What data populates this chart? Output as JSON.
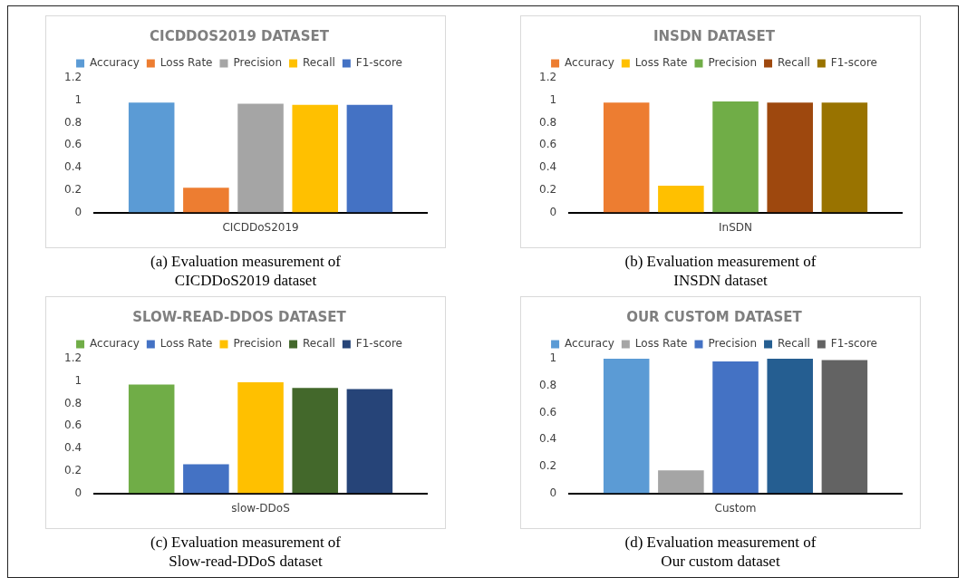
{
  "chart_data": [
    {
      "type": "bar",
      "title": "CICDDOS2019 DATASET",
      "categories": [
        "CICDDoS2019"
      ],
      "legend": "top",
      "grid": false,
      "ylim": [
        0,
        1.2
      ],
      "yticks": [
        0,
        0.2,
        0.4,
        0.6,
        0.8,
        1,
        1.2
      ],
      "annotations": [
        "(a) Evaluation measurement of",
        "CICDDoS2019 dataset"
      ],
      "series": [
        {
          "name": "Accuracy",
          "color": "#5b9bd5",
          "values": [
            0.98
          ]
        },
        {
          "name": "Loss Rate",
          "color": "#ed7d31",
          "values": [
            0.22
          ]
        },
        {
          "name": "Precision",
          "color": "#a5a5a5",
          "values": [
            0.97
          ]
        },
        {
          "name": "Recall",
          "color": "#ffc000",
          "values": [
            0.96
          ]
        },
        {
          "name": "F1-score",
          "color": "#4472c4",
          "values": [
            0.96
          ]
        }
      ]
    },
    {
      "type": "bar",
      "title": "INSDN DATASET",
      "categories": [
        "InSDN"
      ],
      "legend": "top",
      "grid": false,
      "ylim": [
        0,
        1.2
      ],
      "yticks": [
        0,
        0.2,
        0.4,
        0.6,
        0.8,
        1,
        1.2
      ],
      "annotations": [
        "(b) Evaluation measurement of",
        "INSDN dataset"
      ],
      "series": [
        {
          "name": "Accuracy",
          "color": "#ed7d31",
          "values": [
            0.98
          ]
        },
        {
          "name": "Loss Rate",
          "color": "#ffc000",
          "values": [
            0.24
          ]
        },
        {
          "name": "Precision",
          "color": "#70ad47",
          "values": [
            0.99
          ]
        },
        {
          "name": "Recall",
          "color": "#9e480e",
          "values": [
            0.98
          ]
        },
        {
          "name": "F1-score",
          "color": "#997300",
          "values": [
            0.98
          ]
        }
      ]
    },
    {
      "type": "bar",
      "title": "SLOW-READ-DDOS DATASET",
      "categories": [
        "slow-DDoS"
      ],
      "legend": "top",
      "grid": false,
      "ylim": [
        0,
        1.2
      ],
      "yticks": [
        0,
        0.2,
        0.4,
        0.6,
        0.8,
        1,
        1.2
      ],
      "annotations": [
        "(c) Evaluation measurement of",
        "Slow-read-DDoS dataset"
      ],
      "series": [
        {
          "name": "Accuracy",
          "color": "#70ad47",
          "values": [
            0.97
          ]
        },
        {
          "name": "Loss Rate",
          "color": "#4472c4",
          "values": [
            0.26
          ]
        },
        {
          "name": "Precision",
          "color": "#ffc000",
          "values": [
            0.99
          ]
        },
        {
          "name": "Recall",
          "color": "#43682b",
          "values": [
            0.94
          ]
        },
        {
          "name": "F1-score",
          "color": "#264478",
          "values": [
            0.93
          ]
        }
      ]
    },
    {
      "type": "bar",
      "title": "OUR CUSTOM DATASET",
      "categories": [
        "Custom"
      ],
      "legend": "top",
      "grid": false,
      "ylim": [
        0,
        1
      ],
      "yticks": [
        0,
        0.2,
        0.4,
        0.6,
        0.8,
        1
      ],
      "annotations": [
        "(d) Evaluation measurement of",
        "Our custom dataset"
      ],
      "series": [
        {
          "name": "Accuracy",
          "color": "#5b9bd5",
          "values": [
            1.0
          ]
        },
        {
          "name": "Loss Rate",
          "color": "#a5a5a5",
          "values": [
            0.17
          ]
        },
        {
          "name": "Precision",
          "color": "#4472c4",
          "values": [
            0.98
          ]
        },
        {
          "name": "Recall",
          "color": "#255e91",
          "values": [
            1.0
          ]
        },
        {
          "name": "F1-score",
          "color": "#636363",
          "values": [
            0.99
          ]
        }
      ]
    }
  ]
}
